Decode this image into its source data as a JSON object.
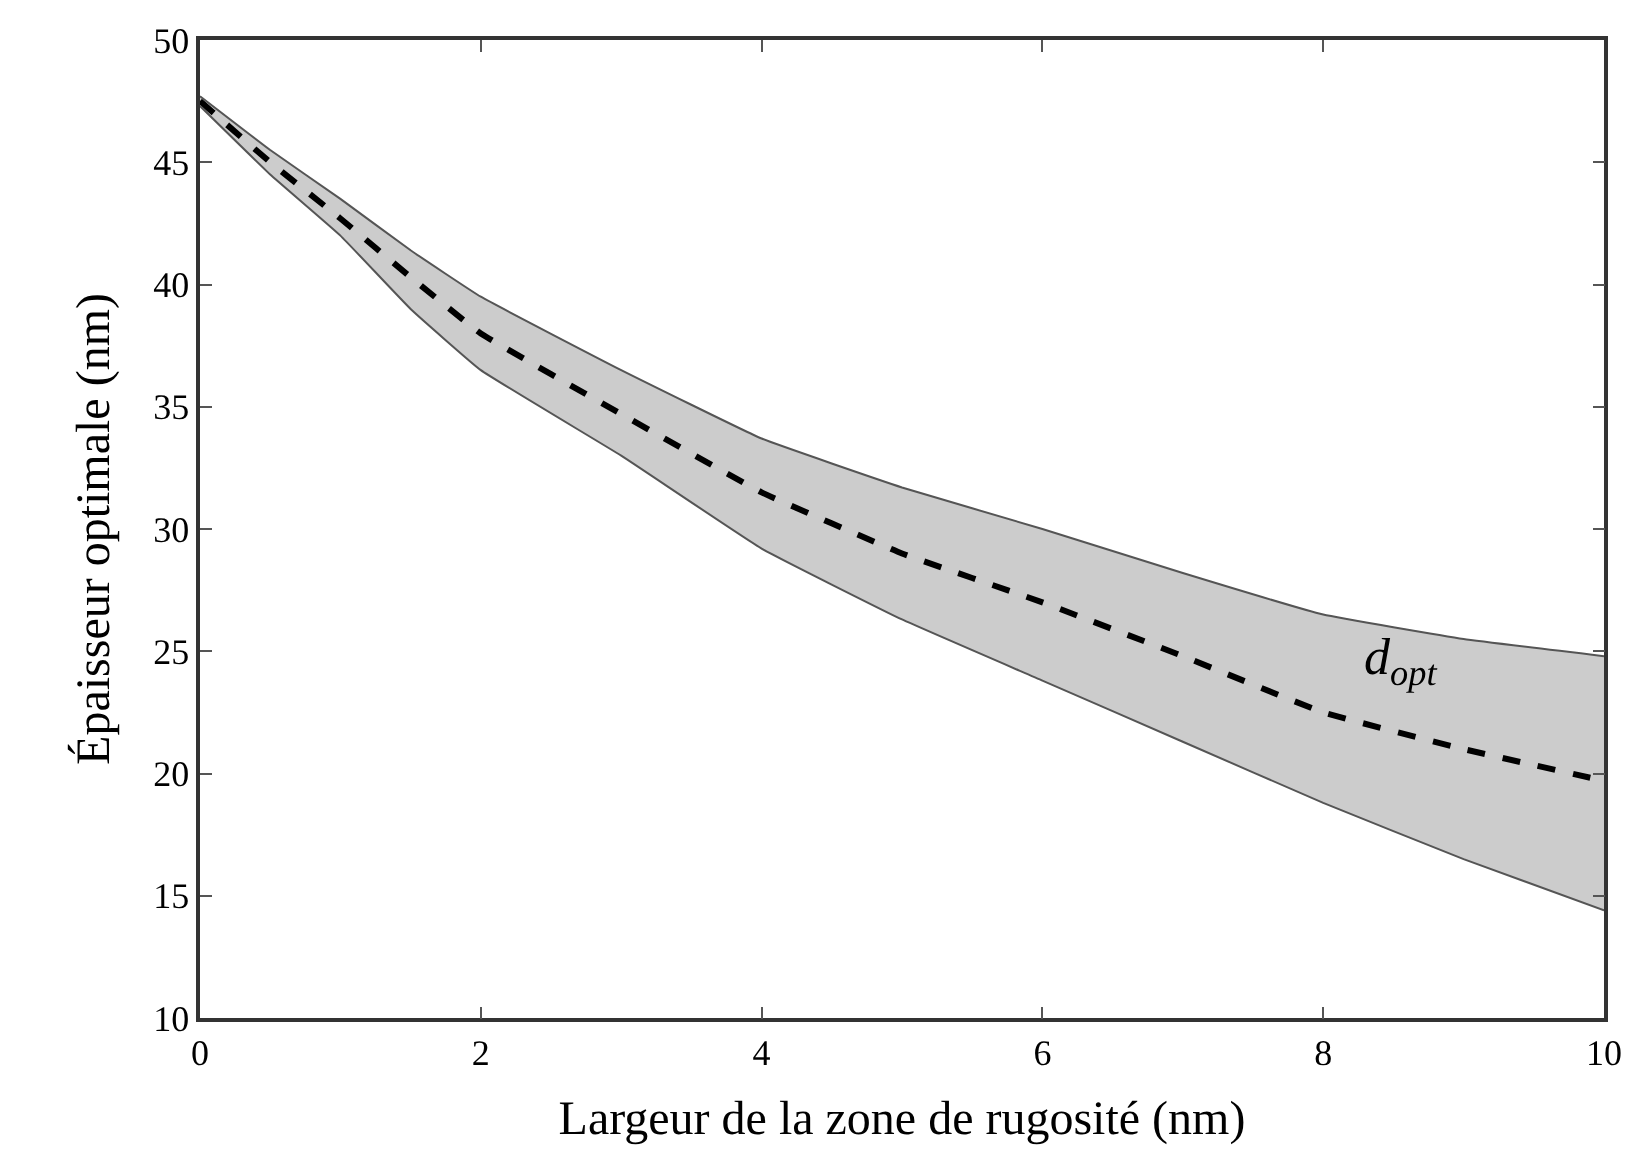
{
  "chart_data": {
    "type": "line",
    "xlabel": "Largeur de la zone de rugosité (nm)",
    "ylabel": "Épaisseur optimale (nm)",
    "x": [
      0,
      0.5,
      1,
      1.5,
      2,
      3,
      4,
      5,
      6,
      7,
      8,
      9,
      10
    ],
    "series": [
      {
        "color": "#000000",
        "line_style": "dashed",
        "values": [
          47.5,
          45,
          42.7,
          40.3,
          38,
          34.7,
          31.5,
          29,
          27,
          24.8,
          22.5,
          21,
          19.7
        ],
        "lower": [
          47.3,
          44.5,
          42,
          39,
          36.5,
          33,
          29.2,
          26.3,
          23.8,
          21.3,
          18.8,
          16.5,
          14.4
        ],
        "upper": [
          47.7,
          45.5,
          43.5,
          41.4,
          39.5,
          36.5,
          33.7,
          31.7,
          30,
          28.2,
          26.5,
          25.5,
          24.8
        ]
      },
      {
        "color": "#555555",
        "values": [
          47.7,
          45.5,
          43.5,
          41.4,
          39.5,
          36.5,
          33.7,
          31.7,
          30,
          28.2,
          26.5,
          25.5,
          24.8
        ]
      },
      {
        "color": "#555555",
        "values": [
          47.3,
          44.5,
          42,
          39,
          36.5,
          33,
          29.2,
          26.3,
          23.8,
          21.3,
          18.8,
          16.5,
          14.4
        ]
      }
    ],
    "xlim": [
      0,
      10
    ],
    "xticks": [
      0,
      2,
      4,
      6,
      8,
      10
    ],
    "ylim": [
      10,
      50
    ],
    "yticks": [
      10,
      15,
      20,
      25,
      30,
      35,
      40,
      45,
      50
    ],
    "annotations": [
      "d$_{opt}$"
    ]
  }
}
